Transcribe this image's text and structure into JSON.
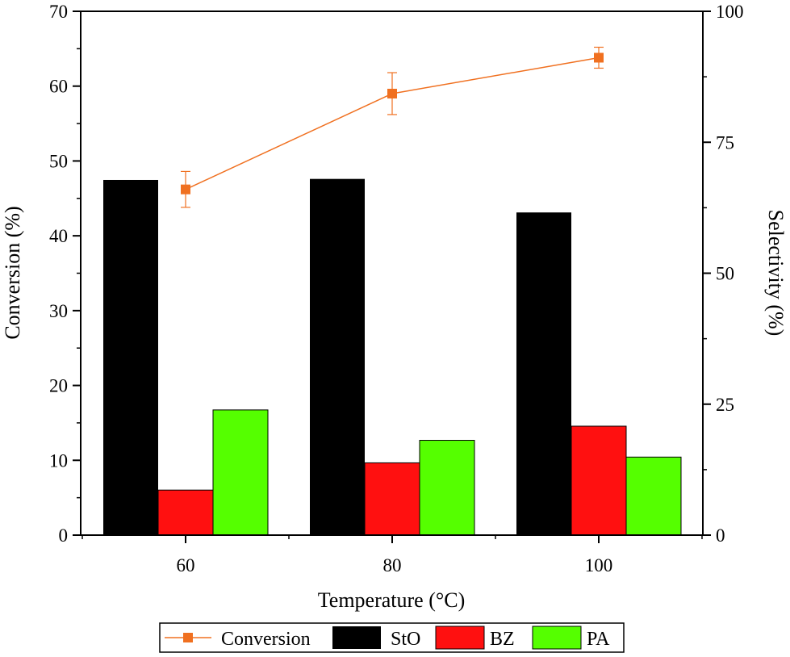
{
  "chart_data": {
    "type": "bar",
    "xlabel": "Temperature (°C)",
    "ylabel_left": "Conversion (%)",
    "ylabel_right": "Selectivity (%)",
    "categories": [
      "60",
      "80",
      "100"
    ],
    "ylim_left": [
      0,
      70
    ],
    "ylim_right": [
      0,
      100
    ],
    "yticks_left": [
      "0",
      "10",
      "20",
      "30",
      "40",
      "50",
      "60",
      "70"
    ],
    "yticks_right": [
      "0",
      "25",
      "50",
      "75",
      "100"
    ],
    "grid": false,
    "legend_position": "bottom",
    "series": [
      {
        "name": "Conversion",
        "kind": "line",
        "axis": "left",
        "color": "#F07020",
        "values": [
          46.2,
          59.0,
          63.8
        ],
        "errors": [
          2.4,
          2.8,
          1.4
        ]
      },
      {
        "name": "StO",
        "kind": "bar",
        "axis": "right",
        "color": "#000000",
        "values": [
          67.8,
          68.0,
          61.6
        ]
      },
      {
        "name": "BZ",
        "kind": "bar",
        "axis": "right",
        "color": "#FF1010",
        "values": [
          8.6,
          13.8,
          20.8
        ]
      },
      {
        "name": "PA",
        "kind": "bar",
        "axis": "right",
        "color": "#55FF00",
        "values": [
          23.9,
          18.1,
          14.9
        ]
      }
    ]
  }
}
